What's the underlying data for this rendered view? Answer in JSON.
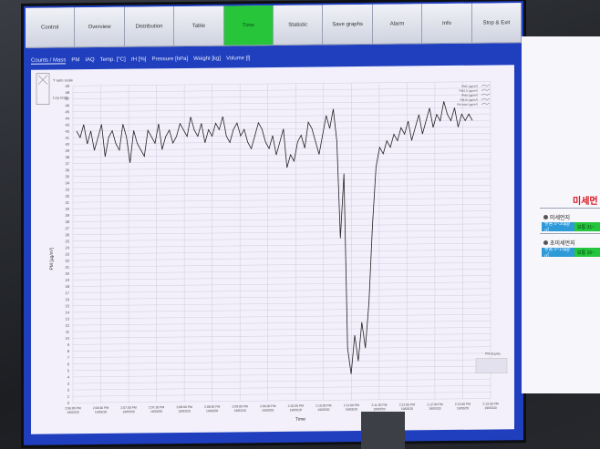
{
  "toolbar": {
    "tabs": [
      "Control",
      "Overview",
      "Distribution",
      "Table",
      "Time",
      "Statistic",
      "Save graphs",
      "Alarm",
      "Info",
      "Stop & Exit"
    ],
    "active_tab": "Time"
  },
  "sub_tabs": [
    "Counts / Mass",
    "PM",
    "IAQ",
    "Temp. [°C]",
    "rH [%]",
    "Pressure [hPa]",
    "Weight [kg]",
    "Volume [l]"
  ],
  "scale_options": {
    "auto": "Y auto scale",
    "log": "Log scale"
  },
  "side_panel": {
    "title": "미세먼",
    "item1": "미세먼지",
    "item1_blue": "좋음 0~30㎍/㎥",
    "item1_green": "보통 31~",
    "item2": "초미세먼지",
    "item2_blue": "좋음 0~15㎍/㎥",
    "item2_green": "보통 16~"
  },
  "chart_data": {
    "type": "line",
    "ylabel": "PM [µg/m³]",
    "xlabel": "Time",
    "ylim": [
      0,
      49
    ],
    "yticks": [
      0,
      1,
      2,
      3,
      4,
      5,
      6,
      7,
      8,
      9,
      10,
      11,
      12,
      13,
      14,
      15,
      16,
      17,
      18,
      19,
      20,
      21,
      22,
      23,
      24,
      25,
      26,
      27,
      28,
      29,
      30,
      31,
      32,
      33,
      34,
      35,
      36,
      37,
      38,
      39,
      40,
      41,
      42,
      43,
      44,
      45,
      46,
      47,
      48,
      49
    ],
    "xticks": [
      "2:06:00 PM\n19/03/20",
      "2:06:30 PM\n19/03/20",
      "2:07:00 PM\n19/03/20",
      "2:07:30 PM\n19/03/20",
      "2:08:00 PM\n19/03/20",
      "2:08:30 PM\n19/03/20",
      "2:09:00 PM\n19/03/20",
      "2:09:30 PM\n19/03/20",
      "2:10:00 PM\n19/03/20",
      "2:10:30 PM\n19/03/20",
      "2:11:00 PM\n19/03/20",
      "2:11:30 PM\n19/03/20",
      "2:12:00 PM\n19/03/20",
      "2:12:30 PM\n19/03/20",
      "2:13:00 PM\n19/03/20",
      "2:13:30 PM\n19/03/20"
    ],
    "legend": [
      "PM1 (µg/m³)",
      "PM2.5 (µg/m³)",
      "PM4 (µg/m³)",
      "PM10 (µg/m³)",
      "PM total (µg/m³)"
    ],
    "legend_position": "top-right",
    "bottom_legend": "PM display",
    "grid": true,
    "series": [
      {
        "values": [
          42,
          41,
          43,
          40,
          42,
          39,
          41,
          43,
          38,
          41,
          42,
          40,
          39,
          43,
          41,
          37,
          42,
          40,
          39,
          38,
          42,
          41,
          40,
          43,
          39,
          41,
          42,
          40,
          41,
          43,
          42,
          41,
          44,
          42,
          41,
          43,
          40,
          42,
          41,
          43,
          42,
          44,
          41,
          40,
          42,
          43,
          41,
          42,
          40,
          39,
          41,
          43,
          42,
          40,
          39,
          41,
          38,
          40,
          42,
          36,
          38,
          37,
          40,
          41,
          39,
          43,
          42,
          40,
          38,
          41,
          44,
          42,
          45,
          40,
          25,
          35,
          8,
          4,
          10,
          6,
          12,
          8,
          15,
          27,
          36,
          39,
          38,
          40,
          39,
          41,
          40,
          42,
          41,
          43,
          40,
          42,
          44,
          41,
          43,
          45,
          42,
          44,
          43,
          46,
          44,
          43,
          45,
          42,
          44,
          43,
          44,
          43
        ]
      }
    ]
  }
}
